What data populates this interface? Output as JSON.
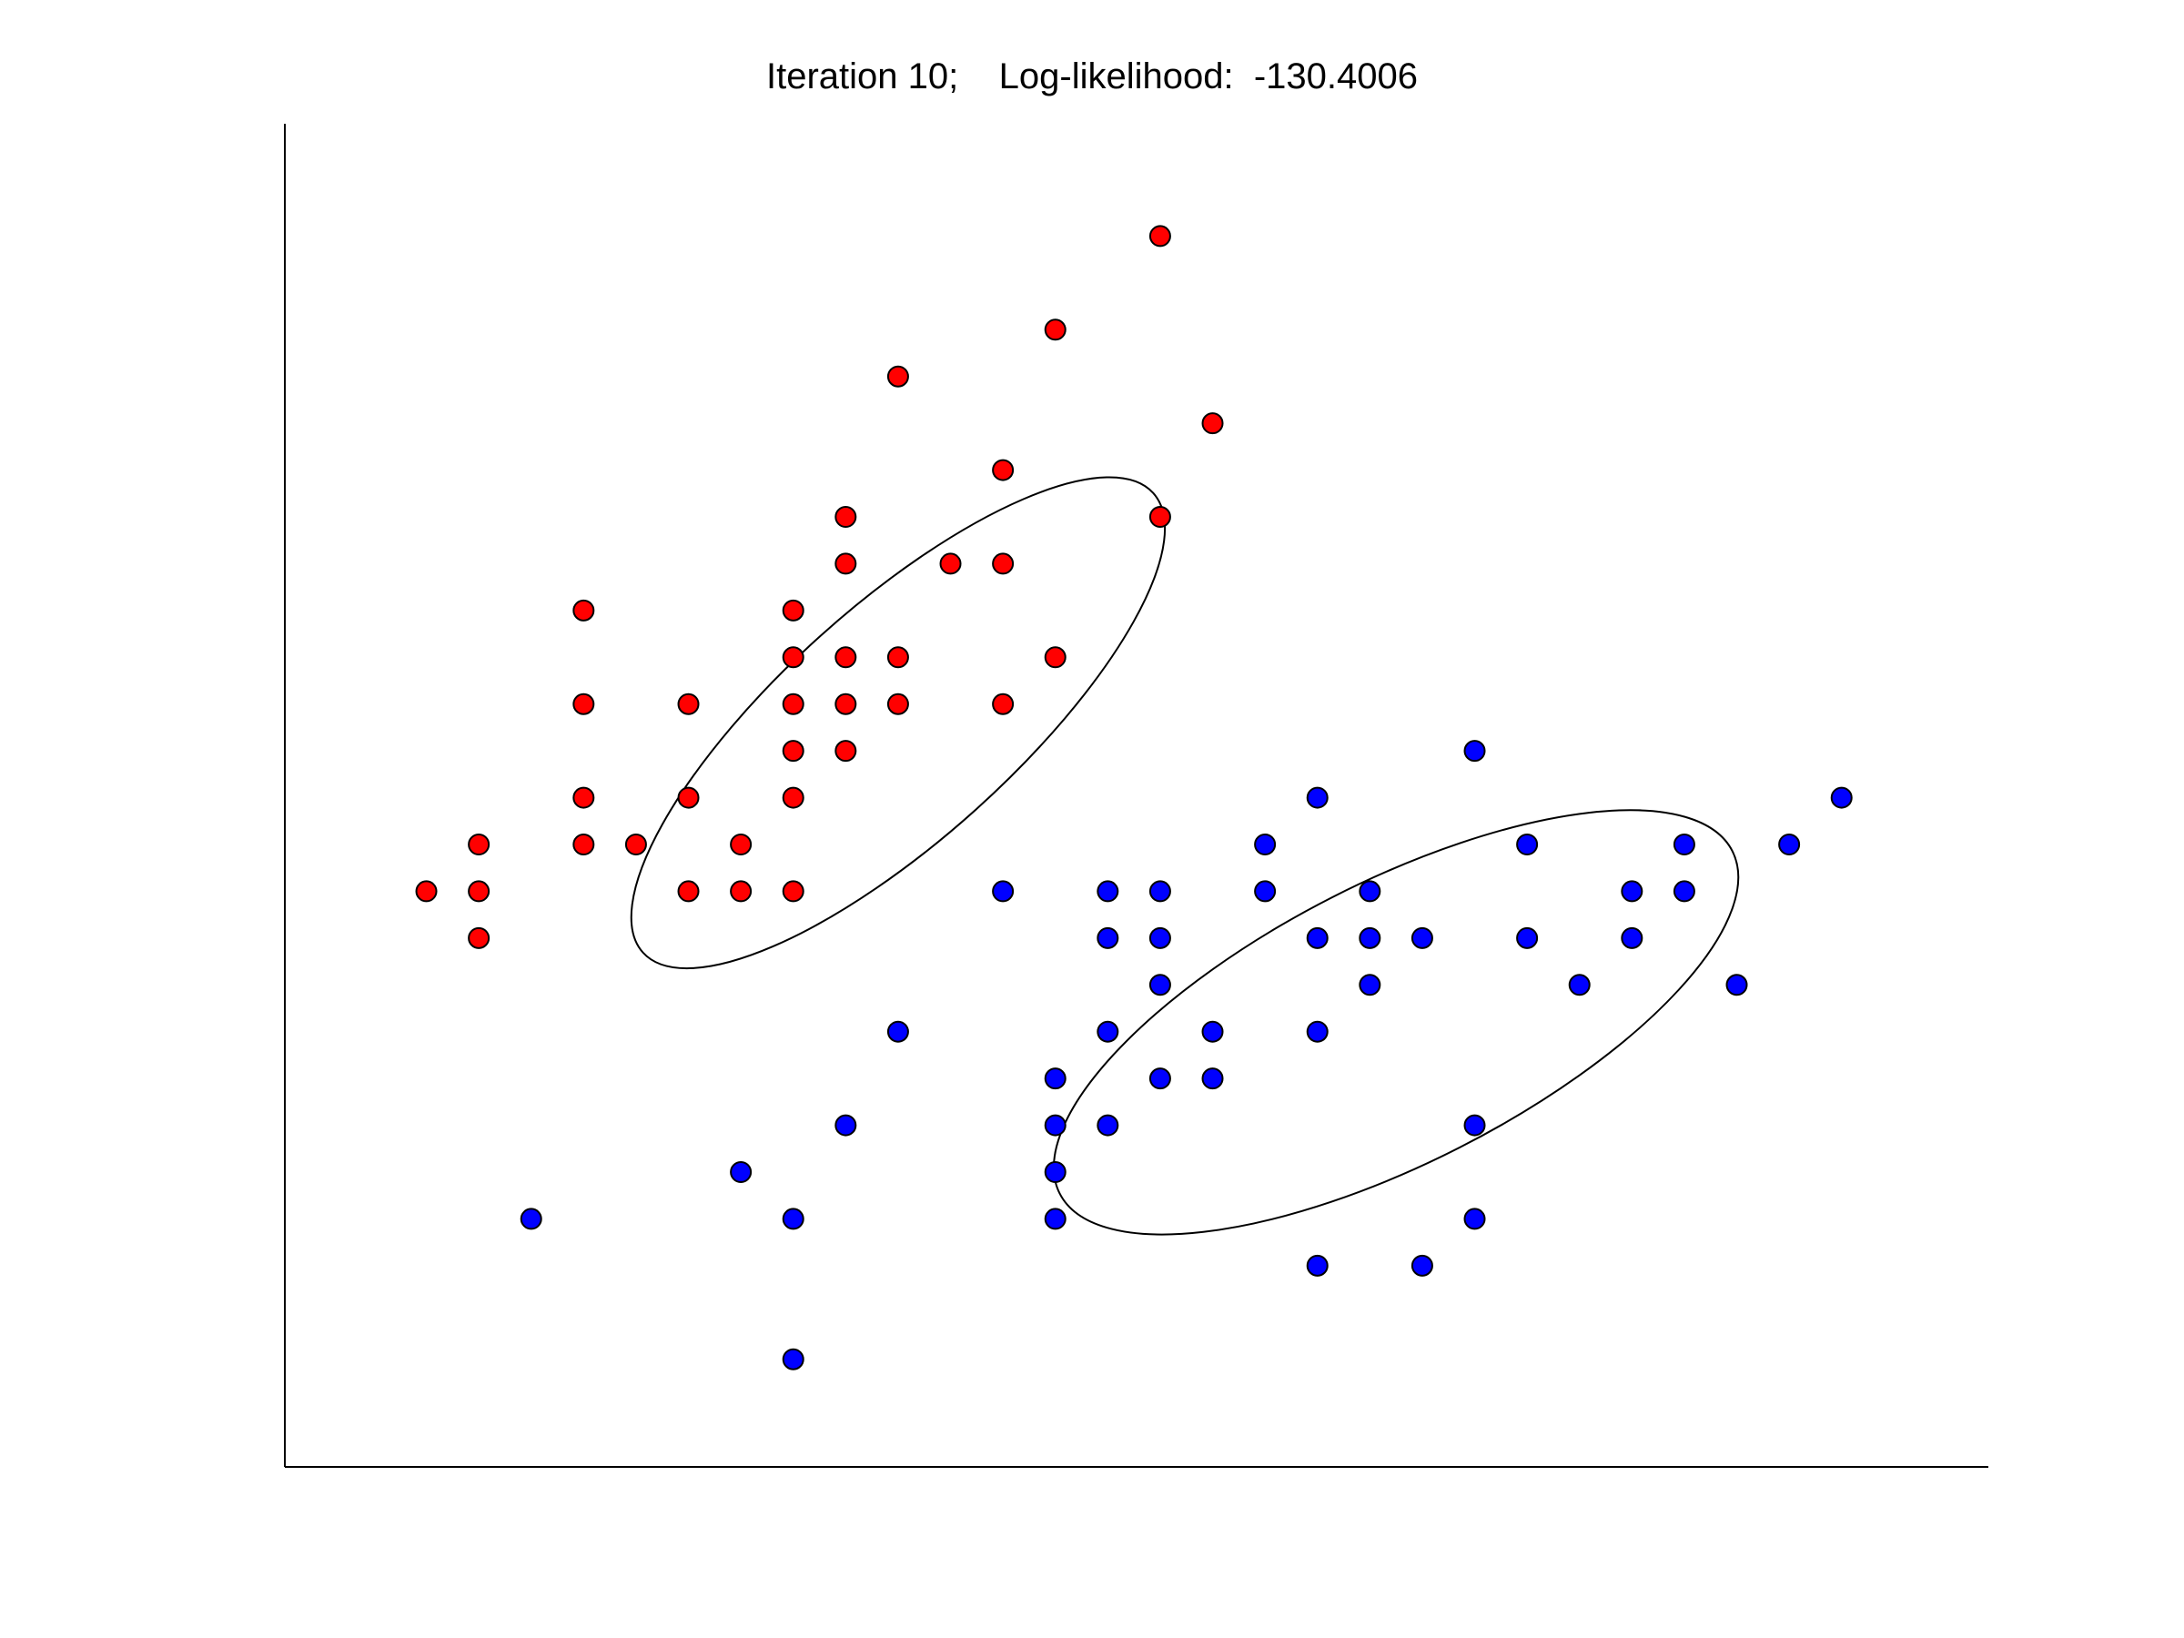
{
  "chart_data": {
    "type": "scatter",
    "title": "Iteration 10;    Log-likelihood:  -130.4006",
    "xlabel": "",
    "ylabel": "",
    "xlim": [
      0.5,
      33
    ],
    "ylim": [
      0.3,
      29
    ],
    "grid": false,
    "axes": [
      "left",
      "bottom"
    ],
    "ticks_shown": false,
    "colors": {
      "cluster_red": "#ff0000",
      "cluster_blue": "#0000ff",
      "outline": "#000000",
      "ellipse": "#000000"
    },
    "series": [
      {
        "color": "#ff0000",
        "points": [
          [
            3.2,
            12.6
          ],
          [
            4.2,
            12.6
          ],
          [
            4.2,
            11.6
          ],
          [
            4.2,
            13.6
          ],
          [
            6.2,
            13.6
          ],
          [
            6.2,
            14.6
          ],
          [
            6.2,
            16.6
          ],
          [
            6.2,
            18.6
          ],
          [
            7.2,
            13.6
          ],
          [
            8.2,
            12.6
          ],
          [
            8.2,
            14.6
          ],
          [
            8.2,
            16.6
          ],
          [
            9.2,
            12.6
          ],
          [
            9.2,
            13.6
          ],
          [
            10.2,
            12.6
          ],
          [
            10.2,
            14.6
          ],
          [
            10.2,
            15.6
          ],
          [
            10.2,
            16.6
          ],
          [
            10.2,
            17.6
          ],
          [
            10.2,
            18.6
          ],
          [
            11.2,
            15.6
          ],
          [
            11.2,
            16.6
          ],
          [
            11.2,
            17.6
          ],
          [
            11.2,
            19.6
          ],
          [
            11.2,
            20.6
          ],
          [
            12.2,
            16.6
          ],
          [
            12.2,
            17.6
          ],
          [
            12.2,
            23.6
          ],
          [
            13.2,
            19.6
          ],
          [
            14.2,
            16.6
          ],
          [
            14.2,
            19.6
          ],
          [
            14.2,
            21.6
          ],
          [
            15.2,
            17.6
          ],
          [
            15.2,
            24.6
          ],
          [
            17.2,
            20.6
          ],
          [
            17.2,
            26.6
          ],
          [
            18.2,
            22.6
          ]
        ]
      },
      {
        "color": "#0000ff",
        "points": [
          [
            5.2,
            5.6
          ],
          [
            9.2,
            6.6
          ],
          [
            10.2,
            2.6
          ],
          [
            10.2,
            5.6
          ],
          [
            11.2,
            7.6
          ],
          [
            12.2,
            9.6
          ],
          [
            14.2,
            12.6
          ],
          [
            15.2,
            5.6
          ],
          [
            15.2,
            6.6
          ],
          [
            15.2,
            7.6
          ],
          [
            15.2,
            8.6
          ],
          [
            16.2,
            7.6
          ],
          [
            16.2,
            9.6
          ],
          [
            16.2,
            11.6
          ],
          [
            16.2,
            12.6
          ],
          [
            17.2,
            8.6
          ],
          [
            17.2,
            10.6
          ],
          [
            17.2,
            11.6
          ],
          [
            17.2,
            12.6
          ],
          [
            18.2,
            8.6
          ],
          [
            18.2,
            9.6
          ],
          [
            19.2,
            12.6
          ],
          [
            19.2,
            13.6
          ],
          [
            20.2,
            4.6
          ],
          [
            20.2,
            9.6
          ],
          [
            20.2,
            11.6
          ],
          [
            20.2,
            14.6
          ],
          [
            21.2,
            10.6
          ],
          [
            21.2,
            11.6
          ],
          [
            21.2,
            12.6
          ],
          [
            22.2,
            4.6
          ],
          [
            22.2,
            11.6
          ],
          [
            23.2,
            5.6
          ],
          [
            23.2,
            7.6
          ],
          [
            23.2,
            15.6
          ],
          [
            24.2,
            11.6
          ],
          [
            24.2,
            13.6
          ],
          [
            25.2,
            10.6
          ],
          [
            26.2,
            11.6
          ],
          [
            26.2,
            12.6
          ],
          [
            27.2,
            12.6
          ],
          [
            27.2,
            13.6
          ],
          [
            28.2,
            10.6
          ],
          [
            29.2,
            13.6
          ],
          [
            30.2,
            14.6
          ]
        ]
      }
    ],
    "ellipses": [
      {
        "center": [
          12.2,
          16.2
        ],
        "semi_axes": [
          6.55,
          2.49
        ],
        "angle_deg": 42
      },
      {
        "center": [
          21.7,
          9.8
        ],
        "semi_axes": [
          7.2,
          3.0
        ],
        "angle_deg": 27
      }
    ]
  }
}
